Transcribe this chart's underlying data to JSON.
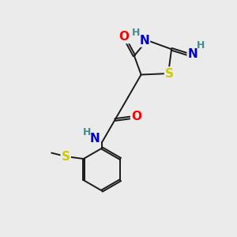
{
  "background_color": "#ebebeb",
  "bond_color": "#1a1a1a",
  "atom_colors": {
    "O": "#ff0000",
    "N": "#0000cc",
    "S": "#cccc00",
    "H": "#4a8a8a",
    "C": "#1a1a1a"
  },
  "font_size_atoms": 11,
  "font_size_H": 9,
  "lw": 1.4
}
